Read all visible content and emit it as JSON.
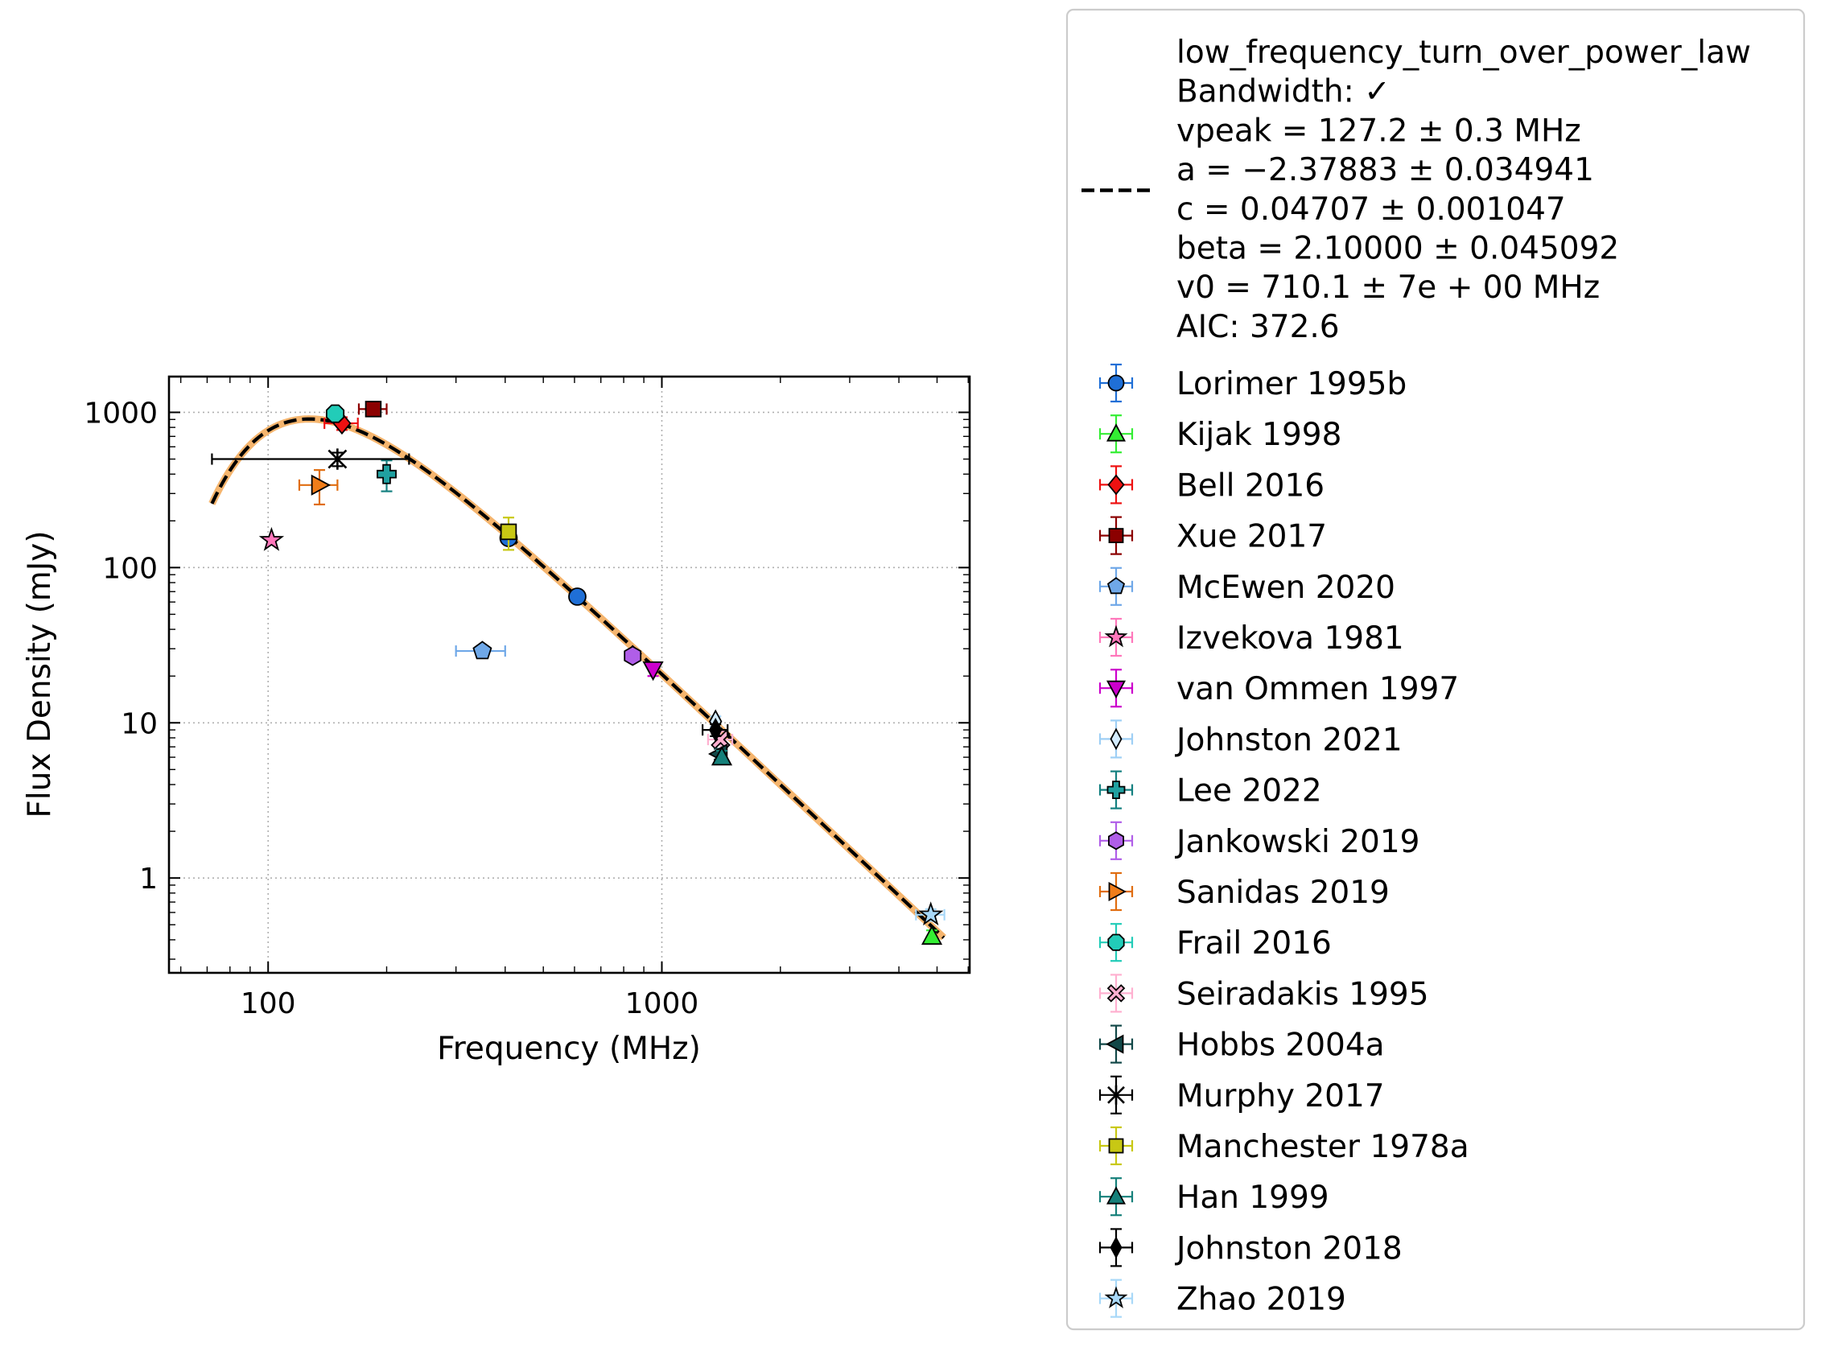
{
  "chart_data": {
    "type": "scatter",
    "title": "",
    "xlabel": "Frequency (MHz)",
    "ylabel": "Flux Density (mJy)",
    "x_scale": "log",
    "y_scale": "log",
    "xlim": [
      56,
      6050
    ],
    "ylim": [
      0.245,
      1700
    ],
    "x_ticks": [
      {
        "value": 100,
        "label": "100"
      },
      {
        "value": 1000,
        "label": "1000"
      }
    ],
    "y_ticks": [
      {
        "value": 1,
        "label": "1"
      },
      {
        "value": 10,
        "label": "10"
      },
      {
        "value": 100,
        "label": "100"
      },
      {
        "value": 1000,
        "label": "1000"
      }
    ],
    "grid": true,
    "legend_position": "outside-right",
    "fit": {
      "model": "low_frequency_turn_over_power_law",
      "lines": [
        "low_frequency_turn_over_power_law",
        "Bandwidth: ✓",
        "vpeak = 127.2 ± 0.3 MHz",
        "a = −2.37883 ± 0.034941",
        "c = 0.04707 ± 0.001047",
        "beta = 2.10000 ± 0.045092",
        "v0 = 710.1 ± 7e + 00 MHz",
        "AIC: 372.6"
      ],
      "vpeak": 127.2,
      "a": -2.37883,
      "c": 0.04707,
      "beta": 2.1,
      "v0": 710.1,
      "x_range": [
        72,
        5200
      ],
      "line_color": "#000000",
      "band_color": "#f5b56e"
    },
    "series": [
      {
        "name": "Lorimer 1995b",
        "marker": "circle",
        "color": "#1f6fd6",
        "ecolor": "#1f6fd6",
        "points": [
          {
            "x": 408,
            "y": 155,
            "xerr": 0,
            "yerr": 0
          },
          {
            "x": 610,
            "y": 65,
            "xerr": 0,
            "yerr": 0
          }
        ]
      },
      {
        "name": "Kijak 1998",
        "marker": "triangle-up",
        "color": "#33ee33",
        "ecolor": "#33ee33",
        "points": [
          {
            "x": 4850,
            "y": 0.42,
            "xerr": 0,
            "yerr": 0.04
          }
        ]
      },
      {
        "name": "Bell 2016",
        "marker": "diamond",
        "color": "#ee1111",
        "ecolor": "#ee1111",
        "points": [
          {
            "x": 154,
            "y": 850,
            "xerr": 15,
            "yerr": 80
          }
        ]
      },
      {
        "name": "Xue 2017",
        "marker": "square",
        "color": "#8b0000",
        "ecolor": "#8b0000",
        "points": [
          {
            "x": 185,
            "y": 1050,
            "xerr": 15,
            "yerr": 60
          }
        ]
      },
      {
        "name": "McEwen 2020",
        "marker": "pentagon",
        "color": "#6fa8e8",
        "ecolor": "#6fa8e8",
        "points": [
          {
            "x": 350,
            "y": 29,
            "xerr": 50,
            "yerr": 0
          }
        ]
      },
      {
        "name": "Izvekova 1981",
        "marker": "star",
        "color": "#ff77bb",
        "ecolor": "#ff77bb",
        "points": [
          {
            "x": 102,
            "y": 150,
            "xerr": 0,
            "yerr": 0
          }
        ]
      },
      {
        "name": "van Ommen 1997",
        "marker": "triangle-down",
        "color": "#cc00cc",
        "ecolor": "#cc00cc",
        "points": [
          {
            "x": 950,
            "y": 22,
            "xerr": 0,
            "yerr": 2
          }
        ]
      },
      {
        "name": "Johnston 2021",
        "marker": "thin-diamond",
        "color": "#d4ecff",
        "ecolor": "#9ecff5",
        "points": [
          {
            "x": 1369,
            "y": 10.2,
            "xerr": 0,
            "yerr": 0.8
          }
        ]
      },
      {
        "name": "Lee 2022",
        "marker": "plus",
        "color": "#20a0a0",
        "ecolor": "#148080",
        "points": [
          {
            "x": 200,
            "y": 400,
            "xerr": 0,
            "yerr": 90
          }
        ]
      },
      {
        "name": "Jankowski 2019",
        "marker": "hexagon",
        "color": "#b05ee8",
        "ecolor": "#b05ee8",
        "points": [
          {
            "x": 843,
            "y": 27,
            "xerr": 0,
            "yerr": 0
          }
        ]
      },
      {
        "name": "Sanidas 2019",
        "marker": "triangle-right",
        "color": "#f07d1a",
        "ecolor": "#e06d10",
        "points": [
          {
            "x": 135,
            "y": 340,
            "xerr": 15,
            "yerr": 85
          }
        ]
      },
      {
        "name": "Frail 2016",
        "marker": "octagon",
        "color": "#22ccb8",
        "ecolor": "#22ccb8",
        "points": [
          {
            "x": 148,
            "y": 980,
            "xerr": 0,
            "yerr": 60
          }
        ]
      },
      {
        "name": "Seiradakis 1995",
        "marker": "x-filled",
        "color": "#ffb0d0",
        "ecolor": "#ffb0d0",
        "points": [
          {
            "x": 1410,
            "y": 7.8,
            "xerr": 100,
            "yerr": 1.0
          }
        ]
      },
      {
        "name": "Hobbs 2004a",
        "marker": "triangle-left",
        "color": "#124848",
        "ecolor": "#124848",
        "points": [
          {
            "x": 1400,
            "y": 6.3,
            "xerr": 0,
            "yerr": 0.5
          }
        ]
      },
      {
        "name": "Murphy 2017",
        "marker": "x-thin",
        "color": "#000000",
        "ecolor": "#000000",
        "points": [
          {
            "x": 150,
            "y": 500,
            "xerr": 78,
            "yerr": 50
          }
        ]
      },
      {
        "name": "Manchester 1978a",
        "marker": "square",
        "color": "#c8c814",
        "ecolor": "#c8c814",
        "points": [
          {
            "x": 408,
            "y": 170,
            "xerr": 0,
            "yerr": 40
          }
        ]
      },
      {
        "name": "Han 1999",
        "marker": "triangle-up",
        "color": "#15807a",
        "ecolor": "#15807a",
        "points": [
          {
            "x": 1420,
            "y": 6.0,
            "xerr": 0,
            "yerr": 0.6
          }
        ]
      },
      {
        "name": "Johnston 2018",
        "marker": "thin-diamond",
        "color": "#000000",
        "ecolor": "#000000",
        "points": [
          {
            "x": 1369,
            "y": 9.0,
            "xerr": 100,
            "yerr": 0.8
          }
        ]
      },
      {
        "name": "Zhao 2019",
        "marker": "star",
        "color": "#a8d8f8",
        "ecolor": "#a8d8f8",
        "points": [
          {
            "x": 4820,
            "y": 0.58,
            "xerr": 400,
            "yerr": 0.05
          }
        ]
      }
    ]
  }
}
